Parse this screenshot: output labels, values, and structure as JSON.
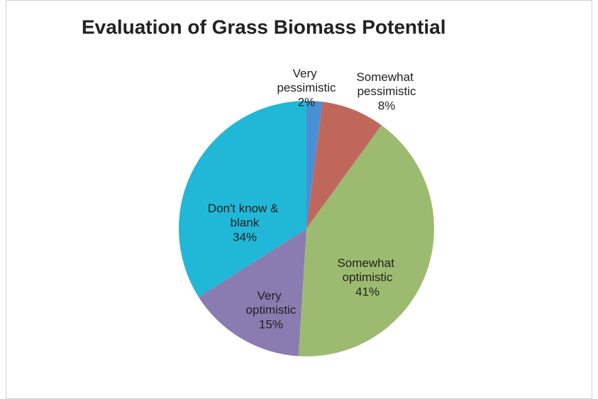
{
  "chart_data": {
    "type": "pie",
    "title": "Evaluation of Grass Biomass Potential",
    "categories": [
      "Very pessimistic",
      "Somewhat pessimistic",
      "Somewhat optimistic",
      "Very optimistic",
      "Don't know & blank"
    ],
    "values": [
      2,
      8,
      41,
      15,
      34
    ],
    "value_labels": [
      "2%",
      "8%",
      "41%",
      "15%",
      "34%"
    ],
    "colors": [
      "#4a8fd4",
      "#c0675c",
      "#9dbb70",
      "#8a7bb0",
      "#21b8d8"
    ]
  }
}
